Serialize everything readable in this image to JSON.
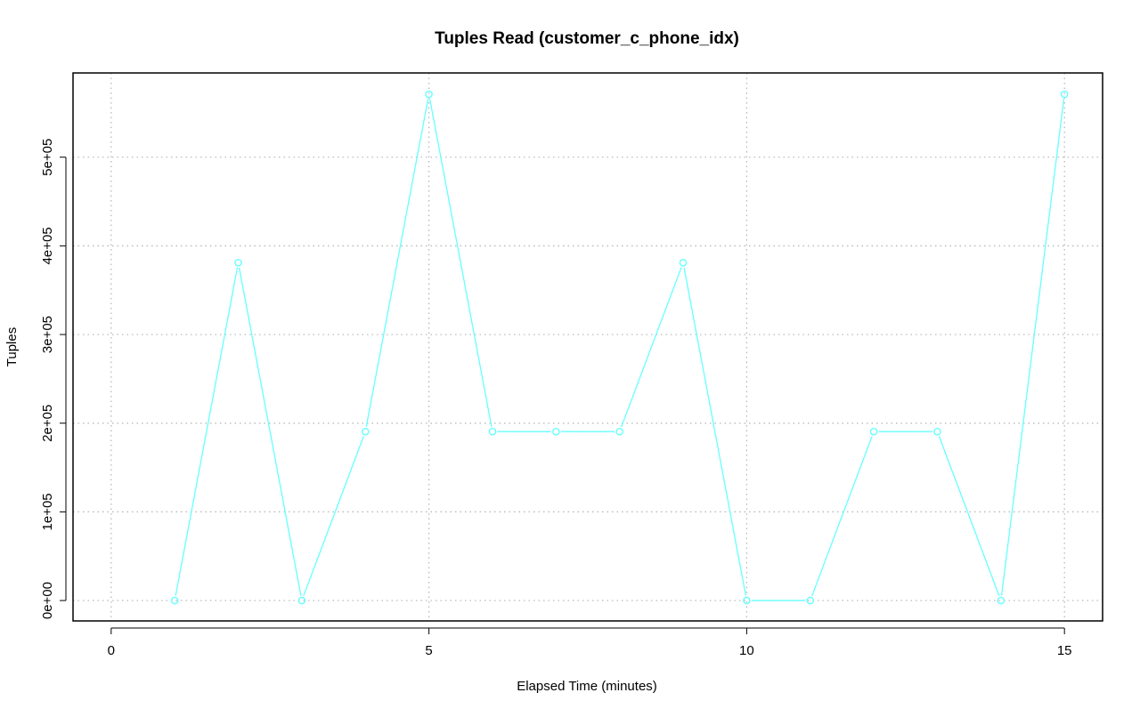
{
  "chart_data": {
    "type": "line",
    "title": "Tuples Read (customer_c_phone_idx)",
    "xlabel": "Elapsed Time (minutes)",
    "ylabel": "Tuples",
    "xlim": [
      -0.6,
      15.6
    ],
    "ylim": [
      -23000,
      595000
    ],
    "x_ticks": [
      0,
      5,
      10,
      15
    ],
    "x_tick_labels": [
      "0",
      "5",
      "10",
      "15"
    ],
    "y_ticks": [
      0,
      100000,
      200000,
      300000,
      400000,
      500000
    ],
    "y_tick_labels": [
      "0e+00",
      "1e+05",
      "2e+05",
      "3e+05",
      "4e+05",
      "5e+05"
    ],
    "grid": true,
    "series": [
      {
        "color": "#66ffff",
        "marker": "open-circle",
        "x": [
          1,
          2,
          3,
          4,
          5,
          6,
          7,
          8,
          9,
          10,
          11,
          12,
          13,
          14,
          15
        ],
        "values": [
          0,
          381000,
          0,
          190500,
          571000,
          190500,
          190500,
          190500,
          381000,
          0,
          0,
          190500,
          190500,
          0,
          571000
        ]
      }
    ]
  }
}
